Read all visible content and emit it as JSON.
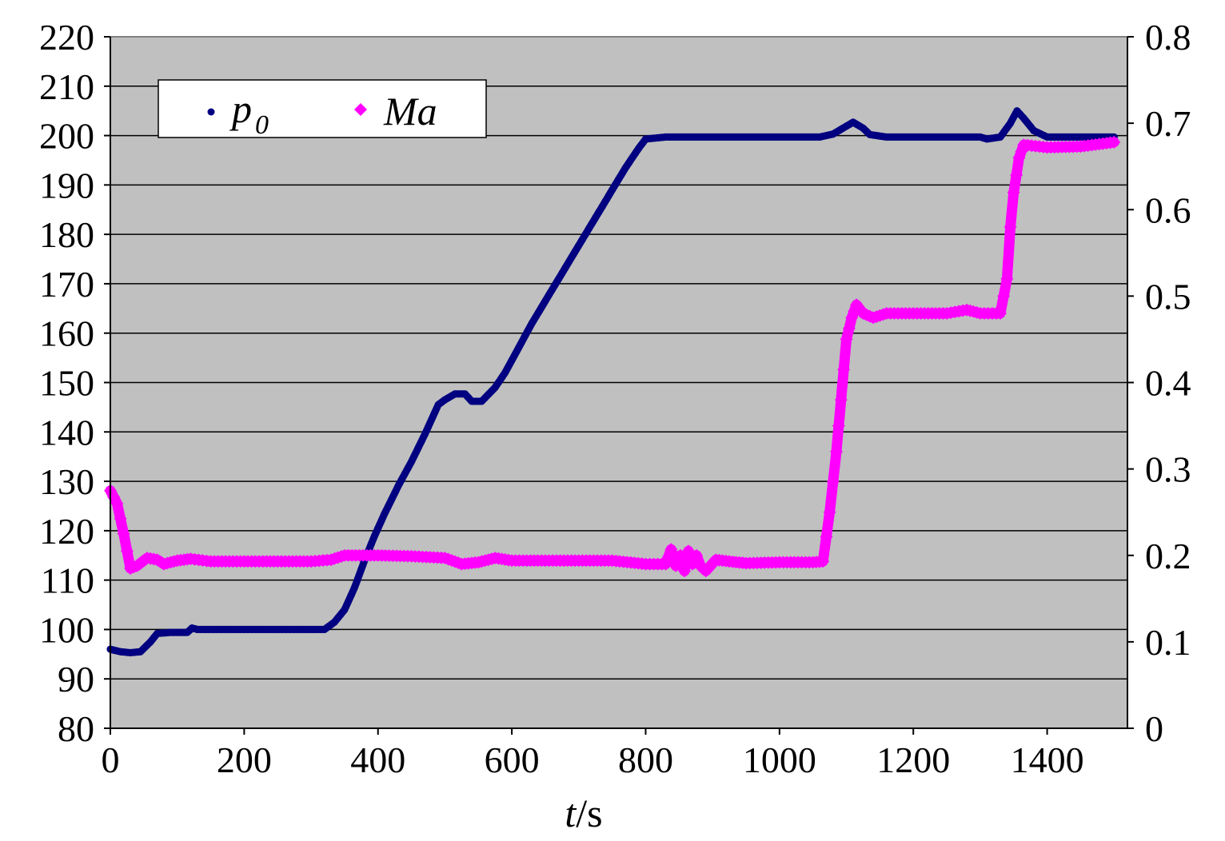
{
  "chart_data": {
    "type": "scatter",
    "xlabel": {
      "italic": "t",
      "rest": "/s"
    },
    "x_ticks": [
      0,
      200,
      400,
      600,
      800,
      1000,
      1200,
      1400
    ],
    "xlim": [
      0,
      1520
    ],
    "y_left": {
      "ticks": [
        80,
        90,
        100,
        110,
        120,
        130,
        140,
        150,
        160,
        170,
        180,
        190,
        200,
        210,
        220
      ],
      "ylim": [
        80,
        220
      ]
    },
    "y_right": {
      "ticks": [
        "0",
        "0.1",
        "0.2",
        "0.3",
        "0.4",
        "0.5",
        "0.6",
        "0.7",
        "0.8"
      ],
      "ylim": [
        0,
        0.8
      ]
    },
    "grid": "horizontal",
    "plot_background": "#c0c0c0",
    "legend_position": "top-left",
    "series": [
      {
        "name": "p",
        "name_subscript": "0",
        "axis": "left",
        "color": "#000080",
        "marker": "small-dot",
        "points": [
          [
            0,
            96
          ],
          [
            15,
            95.5
          ],
          [
            30,
            95.3
          ],
          [
            45,
            95.5
          ],
          [
            60,
            97.5
          ],
          [
            70,
            99.2
          ],
          [
            90,
            99.4
          ],
          [
            115,
            99.4
          ],
          [
            122,
            100.3
          ],
          [
            130,
            100
          ],
          [
            200,
            100
          ],
          [
            280,
            100
          ],
          [
            320,
            100
          ],
          [
            335,
            101.5
          ],
          [
            350,
            104
          ],
          [
            365,
            108.5
          ],
          [
            380,
            114
          ],
          [
            395,
            119
          ],
          [
            410,
            123.5
          ],
          [
            430,
            129
          ],
          [
            450,
            134
          ],
          [
            470,
            139.5
          ],
          [
            490,
            145.5
          ],
          [
            500,
            146.5
          ],
          [
            515,
            147.7
          ],
          [
            530,
            147.7
          ],
          [
            540,
            146.2
          ],
          [
            555,
            146.2
          ],
          [
            575,
            149
          ],
          [
            590,
            152
          ],
          [
            610,
            157
          ],
          [
            630,
            162
          ],
          [
            650,
            166.5
          ],
          [
            670,
            171
          ],
          [
            690,
            175.5
          ],
          [
            710,
            180
          ],
          [
            730,
            184.5
          ],
          [
            750,
            189
          ],
          [
            770,
            193.5
          ],
          [
            790,
            197.5
          ],
          [
            800,
            199.3
          ],
          [
            830,
            199.7
          ],
          [
            900,
            199.7
          ],
          [
            1000,
            199.7
          ],
          [
            1060,
            199.7
          ],
          [
            1080,
            200.3
          ],
          [
            1095,
            201.5
          ],
          [
            1110,
            202.7
          ],
          [
            1125,
            201.5
          ],
          [
            1135,
            200.2
          ],
          [
            1160,
            199.7
          ],
          [
            1250,
            199.7
          ],
          [
            1300,
            199.7
          ],
          [
            1310,
            199.3
          ],
          [
            1330,
            199.7
          ],
          [
            1345,
            202.5
          ],
          [
            1355,
            205
          ],
          [
            1365,
            203.5
          ],
          [
            1380,
            201
          ],
          [
            1400,
            199.7
          ],
          [
            1450,
            199.7
          ],
          [
            1500,
            199.7
          ]
        ]
      },
      {
        "name": "Ma",
        "axis": "right",
        "color": "#ff00ff",
        "marker": "diamond",
        "points": [
          [
            0,
            0.275
          ],
          [
            10,
            0.26
          ],
          [
            20,
            0.225
          ],
          [
            30,
            0.185
          ],
          [
            40,
            0.188
          ],
          [
            55,
            0.197
          ],
          [
            70,
            0.195
          ],
          [
            80,
            0.19
          ],
          [
            100,
            0.194
          ],
          [
            120,
            0.196
          ],
          [
            150,
            0.193
          ],
          [
            200,
            0.193
          ],
          [
            250,
            0.193
          ],
          [
            300,
            0.193
          ],
          [
            330,
            0.195
          ],
          [
            350,
            0.2
          ],
          [
            400,
            0.2
          ],
          [
            450,
            0.199
          ],
          [
            500,
            0.197
          ],
          [
            525,
            0.19
          ],
          [
            550,
            0.192
          ],
          [
            575,
            0.197
          ],
          [
            600,
            0.194
          ],
          [
            650,
            0.194
          ],
          [
            700,
            0.194
          ],
          [
            750,
            0.194
          ],
          [
            800,
            0.19
          ],
          [
            830,
            0.19
          ],
          [
            838,
            0.207
          ],
          [
            845,
            0.188
          ],
          [
            852,
            0.2
          ],
          [
            858,
            0.182
          ],
          [
            864,
            0.205
          ],
          [
            870,
            0.19
          ],
          [
            876,
            0.2
          ],
          [
            882,
            0.188
          ],
          [
            890,
            0.182
          ],
          [
            905,
            0.195
          ],
          [
            925,
            0.193
          ],
          [
            950,
            0.191
          ],
          [
            1000,
            0.192
          ],
          [
            1050,
            0.192
          ],
          [
            1065,
            0.193
          ],
          [
            1075,
            0.25
          ],
          [
            1085,
            0.32
          ],
          [
            1092,
            0.38
          ],
          [
            1100,
            0.45
          ],
          [
            1108,
            0.475
          ],
          [
            1115,
            0.49
          ],
          [
            1125,
            0.48
          ],
          [
            1140,
            0.475
          ],
          [
            1160,
            0.48
          ],
          [
            1200,
            0.48
          ],
          [
            1250,
            0.48
          ],
          [
            1280,
            0.484
          ],
          [
            1300,
            0.48
          ],
          [
            1330,
            0.48
          ],
          [
            1340,
            0.52
          ],
          [
            1345,
            0.58
          ],
          [
            1350,
            0.62
          ],
          [
            1358,
            0.66
          ],
          [
            1365,
            0.675
          ],
          [
            1400,
            0.672
          ],
          [
            1450,
            0.673
          ],
          [
            1500,
            0.678
          ]
        ]
      }
    ]
  }
}
